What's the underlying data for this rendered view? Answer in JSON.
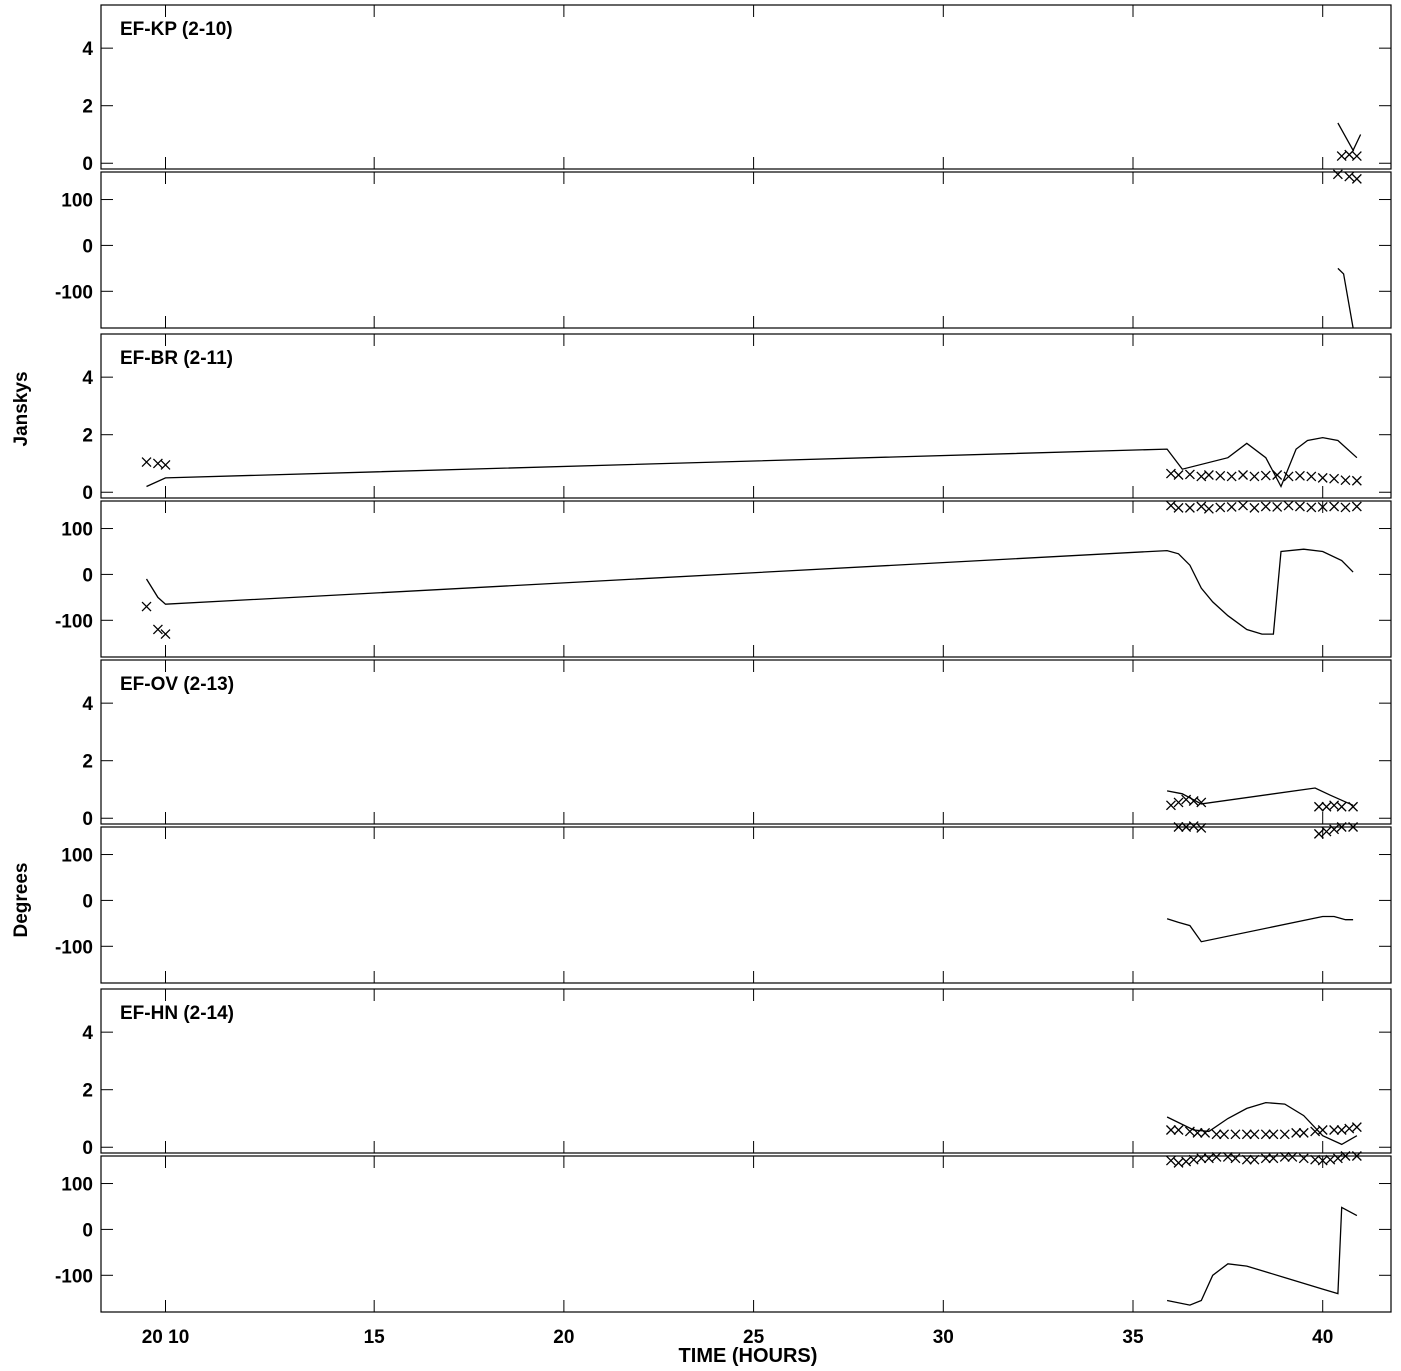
{
  "chart_data": {
    "type": "line",
    "x_label": "TIME (HOURS)",
    "x_ticks": [
      {
        "value": 9.5,
        "label": "20 10"
      },
      {
        "value": 15,
        "label": "15"
      },
      {
        "value": 20,
        "label": "20"
      },
      {
        "value": 25,
        "label": "25"
      },
      {
        "value": 30,
        "label": "30"
      },
      {
        "value": 35,
        "label": "35"
      },
      {
        "value": 40,
        "label": "40"
      }
    ],
    "xlim": [
      7.8,
      41.8
    ],
    "y_label_amp": "Janskys",
    "y_label_phase": "Degrees",
    "amp_ticks": [
      "4",
      "2",
      "0"
    ],
    "amp_tick_values": [
      4,
      2,
      0
    ],
    "amp_lim": [
      -0.2,
      5.5
    ],
    "phase_ticks": [
      "100",
      "0",
      "-100"
    ],
    "phase_tick_values": [
      100,
      0,
      -100
    ],
    "phase_lim": [
      -180,
      160
    ],
    "panels": [
      {
        "title": "EF-KP (2-10)",
        "amp_model": [
          [
            40.4,
            1.4
          ],
          [
            40.8,
            0.45
          ],
          [
            41.0,
            1.0
          ]
        ],
        "amp_points": [
          [
            40.5,
            0.25
          ],
          [
            40.7,
            0.3
          ],
          [
            40.9,
            0.25
          ]
        ],
        "phase_points": [
          [
            40.4,
            155
          ],
          [
            40.7,
            150
          ],
          [
            40.9,
            145
          ]
        ],
        "phase_model": [
          [
            40.4,
            -50
          ],
          [
            40.55,
            -62
          ],
          [
            40.8,
            -180
          ]
        ]
      },
      {
        "title": "EF-BR (2-11)",
        "amp_model": [
          [
            9.0,
            0.2
          ],
          [
            9.5,
            0.5
          ],
          [
            35.9,
            1.5
          ],
          [
            36.3,
            0.8
          ],
          [
            37.5,
            1.2
          ],
          [
            38.0,
            1.7
          ],
          [
            38.5,
            1.2
          ],
          [
            38.9,
            0.2
          ],
          [
            39.3,
            1.5
          ],
          [
            39.6,
            1.8
          ],
          [
            40.0,
            1.9
          ],
          [
            40.4,
            1.8
          ],
          [
            40.9,
            1.2
          ]
        ],
        "amp_points": [
          [
            9.0,
            1.05
          ],
          [
            9.3,
            1.0
          ],
          [
            9.5,
            0.95
          ],
          [
            36.0,
            0.65
          ],
          [
            36.2,
            0.6
          ],
          [
            36.5,
            0.62
          ],
          [
            36.8,
            0.55
          ],
          [
            37.0,
            0.6
          ],
          [
            37.3,
            0.57
          ],
          [
            37.6,
            0.55
          ],
          [
            37.9,
            0.6
          ],
          [
            38.2,
            0.55
          ],
          [
            38.5,
            0.58
          ],
          [
            38.8,
            0.6
          ],
          [
            39.1,
            0.55
          ],
          [
            39.4,
            0.57
          ],
          [
            39.7,
            0.55
          ],
          [
            40.0,
            0.5
          ],
          [
            40.3,
            0.47
          ],
          [
            40.6,
            0.42
          ],
          [
            40.9,
            0.4
          ]
        ],
        "phase_points": [
          [
            9.0,
            -70
          ],
          [
            9.3,
            -120
          ],
          [
            9.5,
            -130
          ],
          [
            36.0,
            150
          ],
          [
            36.2,
            145
          ],
          [
            36.5,
            145
          ],
          [
            36.8,
            148
          ],
          [
            37.0,
            143
          ],
          [
            37.3,
            146
          ],
          [
            37.6,
            147
          ],
          [
            37.9,
            150
          ],
          [
            38.2,
            145
          ],
          [
            38.5,
            148
          ],
          [
            38.8,
            147
          ],
          [
            39.1,
            150
          ],
          [
            39.4,
            148
          ],
          [
            39.7,
            146
          ],
          [
            40.0,
            147
          ],
          [
            40.3,
            148
          ],
          [
            40.6,
            146
          ],
          [
            40.9,
            148
          ]
        ],
        "phase_model": [
          [
            9.0,
            -10
          ],
          [
            9.3,
            -50
          ],
          [
            9.5,
            -65
          ],
          [
            35.9,
            52
          ],
          [
            36.2,
            45
          ],
          [
            36.5,
            20
          ],
          [
            36.8,
            -30
          ],
          [
            37.1,
            -60
          ],
          [
            37.5,
            -90
          ],
          [
            38.0,
            -120
          ],
          [
            38.4,
            -130
          ],
          [
            38.7,
            -130
          ],
          [
            38.9,
            50
          ],
          [
            39.5,
            55
          ],
          [
            40.0,
            50
          ],
          [
            40.5,
            30
          ],
          [
            40.8,
            5
          ]
        ]
      },
      {
        "title": "EF-OV (2-13)",
        "amp_model": [
          [
            35.9,
            0.95
          ],
          [
            36.3,
            0.85
          ],
          [
            36.8,
            0.5
          ],
          [
            39.8,
            1.05
          ],
          [
            40.2,
            0.8
          ],
          [
            40.8,
            0.45
          ]
        ],
        "amp_points": [
          [
            36.0,
            0.45
          ],
          [
            36.2,
            0.55
          ],
          [
            36.4,
            0.65
          ],
          [
            36.6,
            0.6
          ],
          [
            36.8,
            0.55
          ],
          [
            39.9,
            0.4
          ],
          [
            40.1,
            0.4
          ],
          [
            40.3,
            0.45
          ],
          [
            40.5,
            0.4
          ],
          [
            40.8,
            0.4
          ]
        ],
        "phase_points": [
          [
            36.2,
            160
          ],
          [
            36.4,
            160
          ],
          [
            36.6,
            162
          ],
          [
            36.8,
            158
          ],
          [
            39.9,
            145
          ],
          [
            40.1,
            150
          ],
          [
            40.3,
            155
          ],
          [
            40.5,
            160
          ],
          [
            40.8,
            160
          ]
        ],
        "phase_model": [
          [
            35.9,
            -40
          ],
          [
            36.2,
            -48
          ],
          [
            36.5,
            -55
          ],
          [
            36.8,
            -90
          ],
          [
            40.0,
            -35
          ],
          [
            40.3,
            -35
          ],
          [
            40.6,
            -42
          ],
          [
            40.8,
            -42
          ]
        ]
      },
      {
        "title": "EF-HN (2-14)",
        "amp_model": [
          [
            35.9,
            1.05
          ],
          [
            36.6,
            0.6
          ],
          [
            37.0,
            0.55
          ],
          [
            37.5,
            1.0
          ],
          [
            38.0,
            1.35
          ],
          [
            38.5,
            1.55
          ],
          [
            39.0,
            1.5
          ],
          [
            39.5,
            1.1
          ],
          [
            40.0,
            0.4
          ],
          [
            40.5,
            0.1
          ],
          [
            40.9,
            0.4
          ]
        ],
        "amp_points": [
          [
            36.0,
            0.6
          ],
          [
            36.2,
            0.6
          ],
          [
            36.5,
            0.55
          ],
          [
            36.7,
            0.5
          ],
          [
            36.9,
            0.5
          ],
          [
            37.2,
            0.45
          ],
          [
            37.4,
            0.45
          ],
          [
            37.7,
            0.45
          ],
          [
            38.0,
            0.45
          ],
          [
            38.2,
            0.45
          ],
          [
            38.5,
            0.45
          ],
          [
            38.7,
            0.45
          ],
          [
            39.0,
            0.45
          ],
          [
            39.3,
            0.5
          ],
          [
            39.5,
            0.5
          ],
          [
            39.8,
            0.55
          ],
          [
            40.0,
            0.6
          ],
          [
            40.3,
            0.6
          ],
          [
            40.5,
            0.6
          ],
          [
            40.7,
            0.65
          ],
          [
            40.9,
            0.7
          ]
        ],
        "phase_points": [
          [
            36.0,
            150
          ],
          [
            36.2,
            145
          ],
          [
            36.4,
            148
          ],
          [
            36.6,
            152
          ],
          [
            36.8,
            155
          ],
          [
            37.0,
            155
          ],
          [
            37.2,
            158
          ],
          [
            37.5,
            158
          ],
          [
            37.7,
            155
          ],
          [
            38.0,
            152
          ],
          [
            38.2,
            152
          ],
          [
            38.5,
            155
          ],
          [
            38.7,
            155
          ],
          [
            39.0,
            158
          ],
          [
            39.2,
            158
          ],
          [
            39.5,
            155
          ],
          [
            39.8,
            152
          ],
          [
            40.0,
            150
          ],
          [
            40.2,
            152
          ],
          [
            40.4,
            155
          ],
          [
            40.6,
            160
          ],
          [
            40.9,
            160
          ]
        ],
        "phase_model": [
          [
            35.9,
            -155
          ],
          [
            36.5,
            -165
          ],
          [
            36.8,
            -155
          ],
          [
            37.1,
            -100
          ],
          [
            37.5,
            -75
          ],
          [
            38.0,
            -80
          ],
          [
            39.0,
            -105
          ],
          [
            40.0,
            -130
          ],
          [
            40.4,
            -140
          ],
          [
            40.5,
            48
          ],
          [
            40.9,
            30
          ]
        ]
      }
    ]
  }
}
